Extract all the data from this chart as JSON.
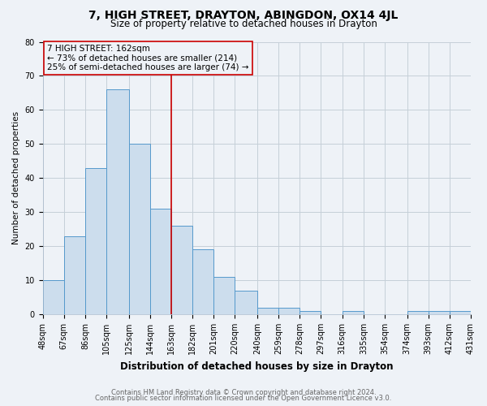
{
  "title": "7, HIGH STREET, DRAYTON, ABINGDON, OX14 4JL",
  "subtitle": "Size of property relative to detached houses in Drayton",
  "xlabel": "Distribution of detached houses by size in Drayton",
  "ylabel": "Number of detached properties",
  "footnote1": "Contains HM Land Registry data © Crown copyright and database right 2024.",
  "footnote2": "Contains public sector information licensed under the Open Government Licence v3.0.",
  "bins": [
    48,
    67,
    86,
    105,
    125,
    144,
    163,
    182,
    201,
    220,
    240,
    259,
    278,
    297,
    316,
    335,
    354,
    374,
    393,
    412,
    431
  ],
  "bin_labels": [
    "48sqm",
    "67sqm",
    "86sqm",
    "105sqm",
    "125sqm",
    "144sqm",
    "163sqm",
    "182sqm",
    "201sqm",
    "220sqm",
    "240sqm",
    "259sqm",
    "278sqm",
    "297sqm",
    "316sqm",
    "335sqm",
    "354sqm",
    "374sqm",
    "393sqm",
    "412sqm",
    "431sqm"
  ],
  "heights": [
    10,
    23,
    43,
    66,
    50,
    31,
    26,
    19,
    11,
    7,
    2,
    2,
    1,
    0,
    1,
    0,
    0,
    1,
    1,
    1
  ],
  "bar_color": "#ccdded",
  "bar_edge_color": "#5599cc",
  "property_line_x": 163,
  "property_line_color": "#cc0000",
  "ylim": [
    0,
    80
  ],
  "yticks": [
    0,
    10,
    20,
    30,
    40,
    50,
    60,
    70,
    80
  ],
  "annotation_text": "7 HIGH STREET: 162sqm\n← 73% of detached houses are smaller (214)\n25% of semi-detached houses are larger (74) →",
  "annotation_box_color": "#cc0000",
  "bg_color": "#eef2f7",
  "grid_color": "#c5cfd8",
  "title_fontsize": 10,
  "subtitle_fontsize": 8.5,
  "xlabel_fontsize": 8.5,
  "ylabel_fontsize": 7.5,
  "tick_fontsize": 7,
  "annot_fontsize": 7.5,
  "footnote_fontsize": 6
}
